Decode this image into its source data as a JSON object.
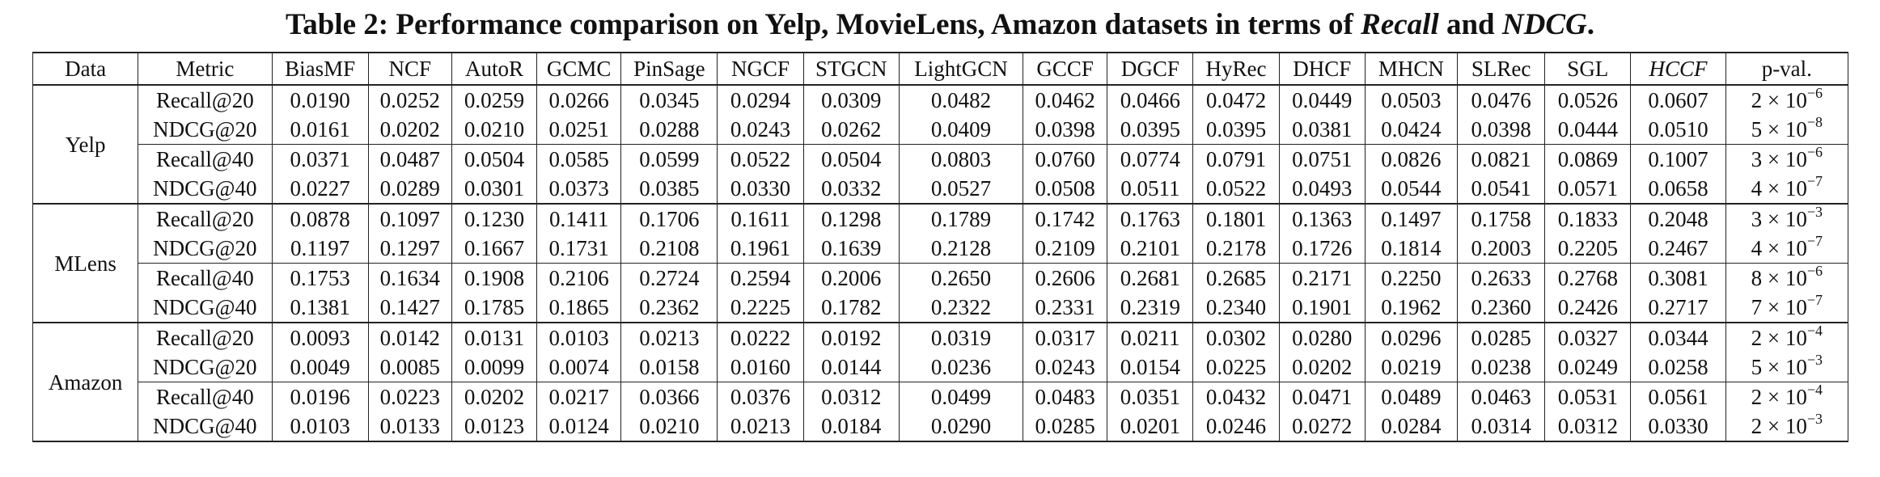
{
  "caption": {
    "prefix": "Table 2: Performance comparison on Yelp, MovieLens, Amazon datasets in terms of ",
    "metric_a": "Recall",
    "and": " and ",
    "metric_b": "NDCG",
    "suffix": "."
  },
  "columns": [
    "Data",
    "Metric",
    "BiasMF",
    "NCF",
    "AutoR",
    "GCMC",
    "PinSage",
    "NGCF",
    "STGCN",
    "LightGCN",
    "GCCF",
    "DGCF",
    "HyRec",
    "DHCF",
    "MHCN",
    "SLRec",
    "SGL",
    "HCCF",
    "p-val."
  ],
  "datasets": [
    {
      "name": "Yelp",
      "rows": [
        {
          "metric": "Recall@20",
          "values": [
            "0.0190",
            "0.0252",
            "0.0259",
            "0.0266",
            "0.0345",
            "0.0294",
            "0.0309",
            "0.0482",
            "0.0462",
            "0.0466",
            "0.0472",
            "0.0449",
            "0.0503",
            "0.0476",
            "0.0526",
            "0.0607"
          ],
          "p_base": "2 × 10",
          "p_exp": "−6"
        },
        {
          "metric": "NDCG@20",
          "values": [
            "0.0161",
            "0.0202",
            "0.0210",
            "0.0251",
            "0.0288",
            "0.0243",
            "0.0262",
            "0.0409",
            "0.0398",
            "0.0395",
            "0.0395",
            "0.0381",
            "0.0424",
            "0.0398",
            "0.0444",
            "0.0510"
          ],
          "p_base": "5 × 10",
          "p_exp": "−8"
        },
        {
          "metric": "Recall@40",
          "values": [
            "0.0371",
            "0.0487",
            "0.0504",
            "0.0585",
            "0.0599",
            "0.0522",
            "0.0504",
            "0.0803",
            "0.0760",
            "0.0774",
            "0.0791",
            "0.0751",
            "0.0826",
            "0.0821",
            "0.0869",
            "0.1007"
          ],
          "p_base": "3 × 10",
          "p_exp": "−6"
        },
        {
          "metric": "NDCG@40",
          "values": [
            "0.0227",
            "0.0289",
            "0.0301",
            "0.0373",
            "0.0385",
            "0.0330",
            "0.0332",
            "0.0527",
            "0.0508",
            "0.0511",
            "0.0522",
            "0.0493",
            "0.0544",
            "0.0541",
            "0.0571",
            "0.0658"
          ],
          "p_base": "4 × 10",
          "p_exp": "−7"
        }
      ]
    },
    {
      "name": "MLens",
      "rows": [
        {
          "metric": "Recall@20",
          "values": [
            "0.0878",
            "0.1097",
            "0.1230",
            "0.1411",
            "0.1706",
            "0.1611",
            "0.1298",
            "0.1789",
            "0.1742",
            "0.1763",
            "0.1801",
            "0.1363",
            "0.1497",
            "0.1758",
            "0.1833",
            "0.2048"
          ],
          "p_base": "3 × 10",
          "p_exp": "−3"
        },
        {
          "metric": "NDCG@20",
          "values": [
            "0.1197",
            "0.1297",
            "0.1667",
            "0.1731",
            "0.2108",
            "0.1961",
            "0.1639",
            "0.2128",
            "0.2109",
            "0.2101",
            "0.2178",
            "0.1726",
            "0.1814",
            "0.2003",
            "0.2205",
            "0.2467"
          ],
          "p_base": "4 × 10",
          "p_exp": "−7"
        },
        {
          "metric": "Recall@40",
          "values": [
            "0.1753",
            "0.1634",
            "0.1908",
            "0.2106",
            "0.2724",
            "0.2594",
            "0.2006",
            "0.2650",
            "0.2606",
            "0.2681",
            "0.2685",
            "0.2171",
            "0.2250",
            "0.2633",
            "0.2768",
            "0.3081"
          ],
          "p_base": "8 × 10",
          "p_exp": "−6"
        },
        {
          "metric": "NDCG@40",
          "values": [
            "0.1381",
            "0.1427",
            "0.1785",
            "0.1865",
            "0.2362",
            "0.2225",
            "0.1782",
            "0.2322",
            "0.2331",
            "0.2319",
            "0.2340",
            "0.1901",
            "0.1962",
            "0.2360",
            "0.2426",
            "0.2717"
          ],
          "p_base": "7 × 10",
          "p_exp": "−7"
        }
      ]
    },
    {
      "name": "Amazon",
      "rows": [
        {
          "metric": "Recall@20",
          "values": [
            "0.0093",
            "0.0142",
            "0.0131",
            "0.0103",
            "0.0213",
            "0.0222",
            "0.0192",
            "0.0319",
            "0.0317",
            "0.0211",
            "0.0302",
            "0.0280",
            "0.0296",
            "0.0285",
            "0.0327",
            "0.0344"
          ],
          "p_base": "2 × 10",
          "p_exp": "−4"
        },
        {
          "metric": "NDCG@20",
          "values": [
            "0.0049",
            "0.0085",
            "0.0099",
            "0.0074",
            "0.0158",
            "0.0160",
            "0.0144",
            "0.0236",
            "0.0243",
            "0.0154",
            "0.0225",
            "0.0202",
            "0.0219",
            "0.0238",
            "0.0249",
            "0.0258"
          ],
          "p_base": "5 × 10",
          "p_exp": "−3"
        },
        {
          "metric": "Recall@40",
          "values": [
            "0.0196",
            "0.0223",
            "0.0202",
            "0.0217",
            "0.0366",
            "0.0376",
            "0.0312",
            "0.0499",
            "0.0483",
            "0.0351",
            "0.0432",
            "0.0471",
            "0.0489",
            "0.0463",
            "0.0531",
            "0.0561"
          ],
          "p_base": "2 × 10",
          "p_exp": "−4"
        },
        {
          "metric": "NDCG@40",
          "values": [
            "0.0103",
            "0.0133",
            "0.0123",
            "0.0124",
            "0.0210",
            "0.0213",
            "0.0184",
            "0.0290",
            "0.0285",
            "0.0201",
            "0.0246",
            "0.0272",
            "0.0284",
            "0.0314",
            "0.0312",
            "0.0330"
          ],
          "p_base": "2 × 10",
          "p_exp": "−3"
        }
      ]
    }
  ]
}
